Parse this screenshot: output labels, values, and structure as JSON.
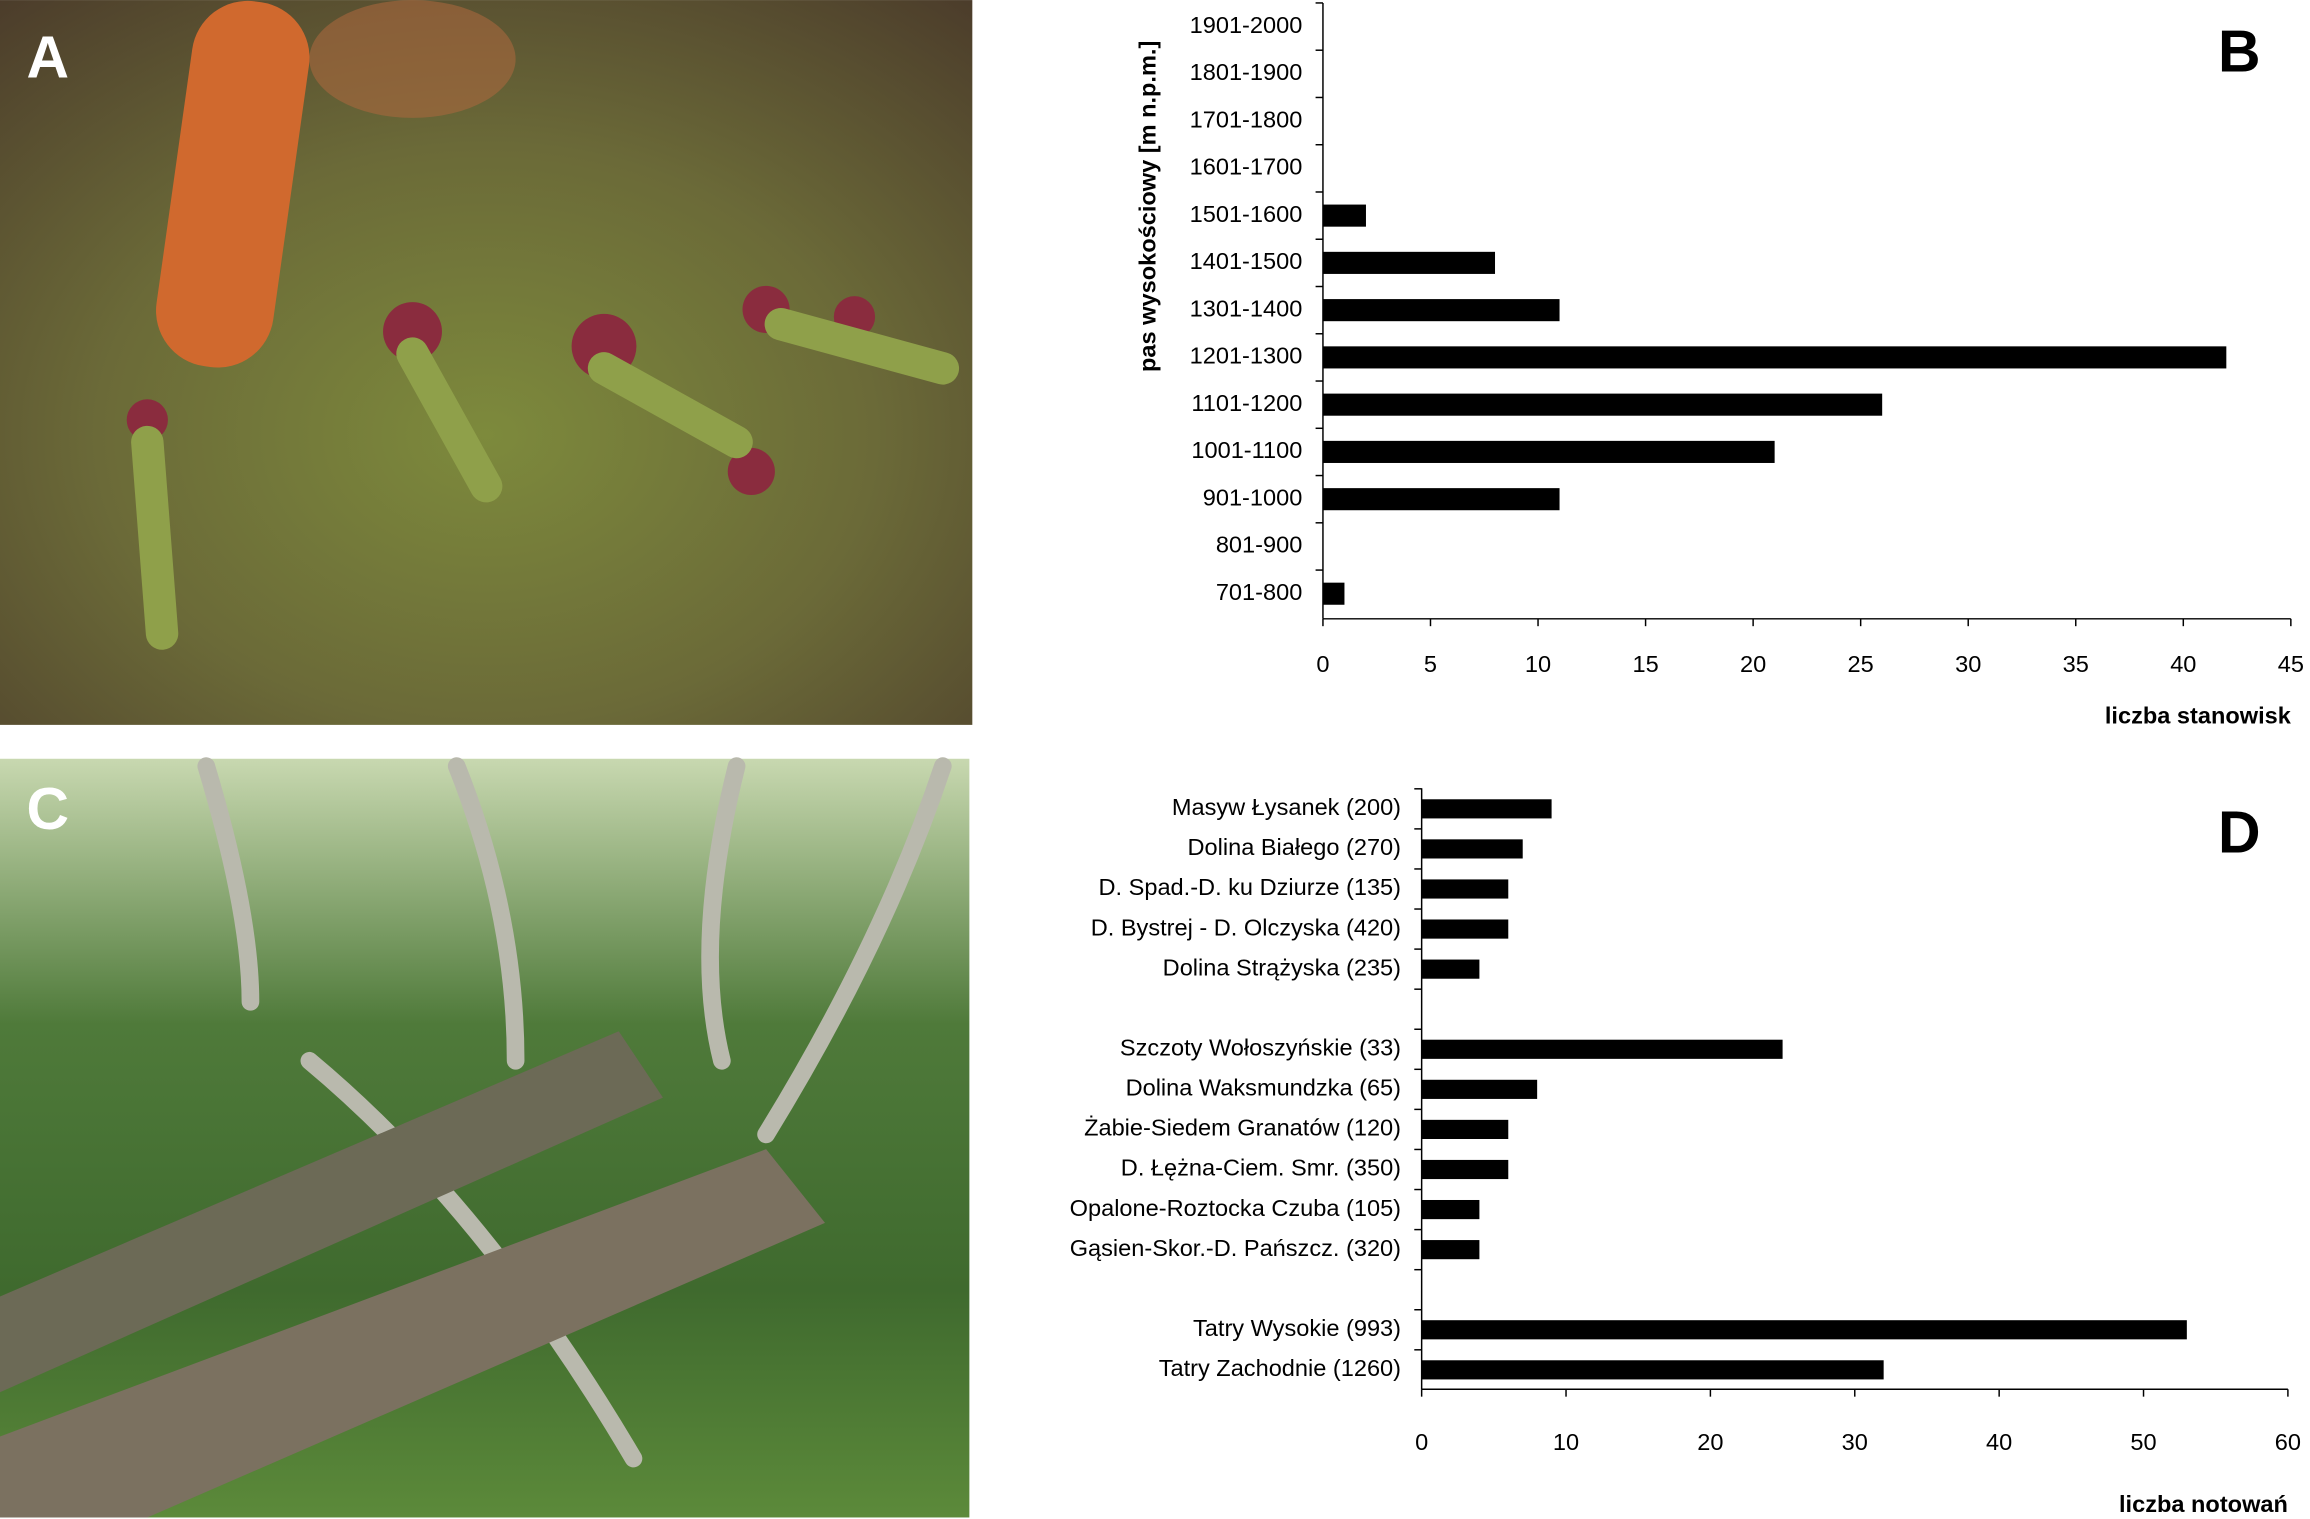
{
  "photos": [
    {
      "label": "A"
    },
    {
      "label": "C"
    }
  ],
  "chart_data": [
    {
      "type": "bar",
      "panel_label": "B",
      "color": "#000000",
      "x_label": "liczba stanowisk",
      "y_label": "pas wysokościowy [m n.p.m.]",
      "categories": [
        "1901-2000",
        "1801-1900",
        "1701-1800",
        "1601-1700",
        "1501-1600",
        "1401-1500",
        "1301-1400",
        "1201-1300",
        "1101-1200",
        "1001-1100",
        "901-1000",
        "801-900",
        "701-800"
      ],
      "values": [
        0,
        0,
        0,
        0,
        2,
        8,
        11,
        42,
        26,
        21,
        11,
        0,
        1
      ],
      "xlim": [
        0,
        45
      ],
      "xticks": [
        0,
        5,
        10,
        15,
        20,
        25,
        30,
        35,
        40,
        45
      ],
      "grid": false
    },
    {
      "type": "bar",
      "panel_label": "D",
      "color": "#000000",
      "x_label": "liczba notowań",
      "categories": [
        "Masyw Łysanek (200)",
        "Dolina Białego (270)",
        "D. Spad.-D. ku Dziurze (135)",
        "D. Bystrej - D. Olczyska (420)",
        "Dolina Strążyska (235)",
        null,
        "Szczoty Wołoszyńskie (33)",
        "Dolina Waksmundzka (65)",
        "Żabie-Siedem Granatów (120)",
        "D. Łężna-Ciem. Smr. (350)",
        "Opalone-Roztocka Czuba (105)",
        "Gąsien-Skor.-D. Pańszcz. (320)",
        null,
        "Tatry Wysokie (993)",
        "Tatry Zachodnie (1260)"
      ],
      "values": [
        9,
        7,
        6,
        6,
        4,
        null,
        25,
        8,
        6,
        6,
        4,
        4,
        null,
        53,
        32
      ],
      "xlim": [
        0,
        60
      ],
      "xticks": [
        0,
        10,
        20,
        30,
        40,
        50,
        60
      ],
      "grid": false
    }
  ]
}
